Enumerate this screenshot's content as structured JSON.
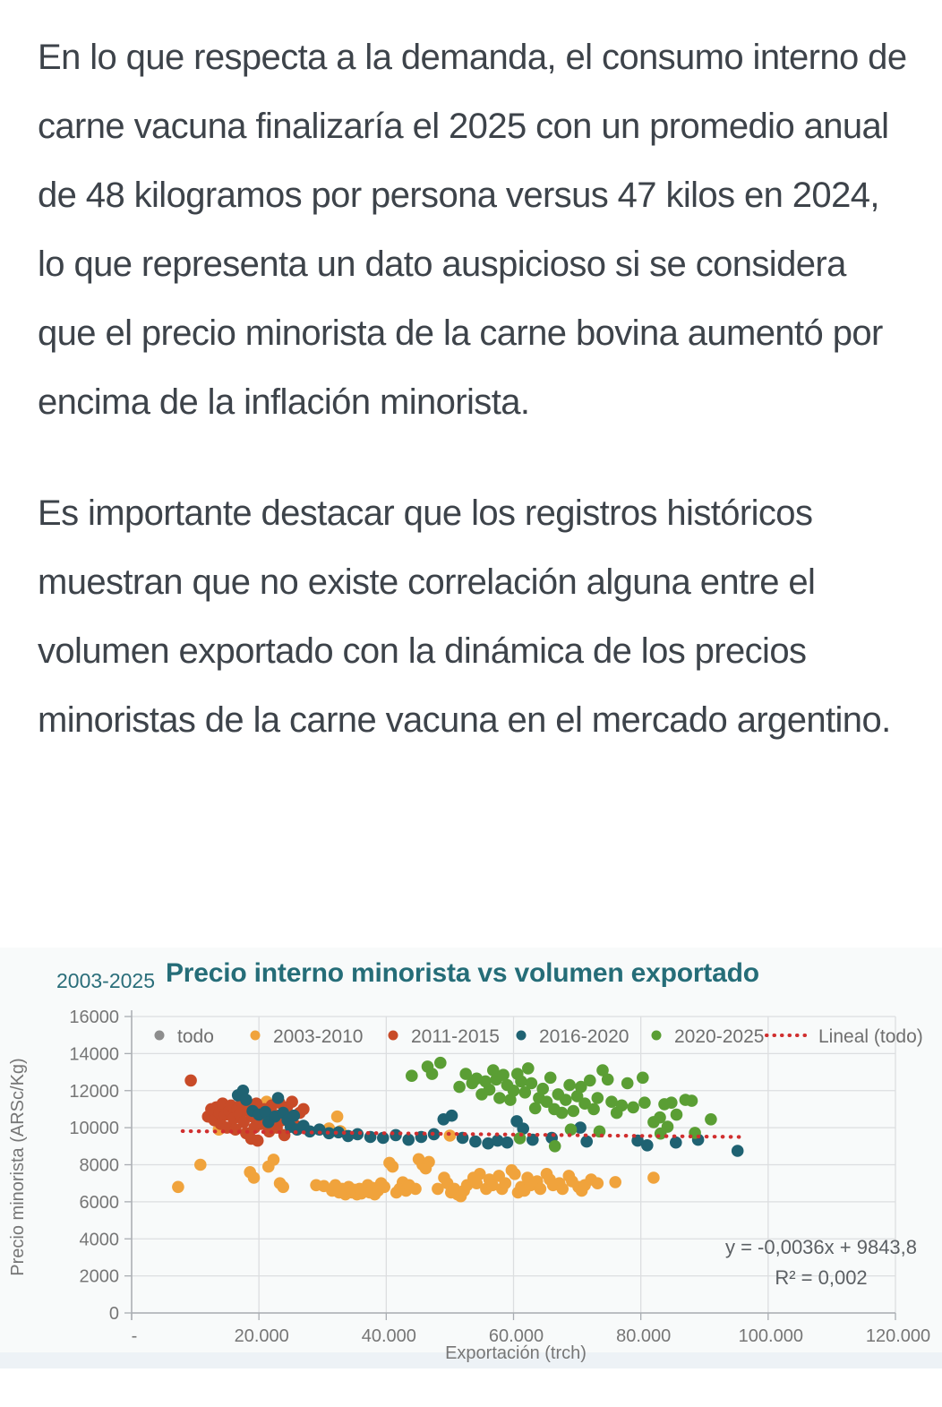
{
  "article": {
    "paragraph1": "En lo que respecta a la demanda, el consumo interno de carne vacuna finalizaría el 2025 con un promedio anual de 48 kilogramos por persona versus 47 kilos en 2024, lo que representa un dato auspicioso si se considera que el precio minorista de la carne bovina aumentó por encima de la inflación minorista.",
    "paragraph2": "Es importante destacar que los registros históricos muestran que no existe correlación alguna entre el volumen exportado con la dinámica de los precios minoristas de la carne vacuna en el mercado argentino."
  },
  "chart": {
    "period_label": "2003-2025",
    "title": "Precio interno minorista vs volumen exportado",
    "title_color": "#256d78",
    "xlabel": "Exportación (trch)",
    "ylabel": "Precio minorista (ARSc/Kg)",
    "x_tick_labels": [
      "-",
      "20.000",
      "40.000",
      "60.000",
      "80.000",
      "100.000",
      "120.000"
    ],
    "y_tick_labels": [
      "0",
      "2000",
      "4000",
      "6000",
      "8000",
      "10000",
      "12000",
      "14000",
      "16000"
    ],
    "equation": "y = -0,0036x + 9843,8",
    "r_squared": "R² = 0,002",
    "legend": [
      {
        "label": "todo",
        "color": "#8d8d8d",
        "type": "dot"
      },
      {
        "label": "2003-2010",
        "color": "#f0a33c",
        "type": "dot"
      },
      {
        "label": "2011-2015",
        "color": "#c84b28",
        "type": "dot"
      },
      {
        "label": "2016-2020",
        "color": "#1f6272",
        "type": "dot"
      },
      {
        "label": "2020-2025",
        "color": "#5a9e34",
        "type": "dot"
      },
      {
        "label": "Lineal (todo)",
        "color": "#d02f2f",
        "type": "dotted-line"
      }
    ]
  },
  "chart_data": {
    "type": "scatter",
    "title": "Precio interno minorista vs volumen exportado",
    "subtitle": "2003-2025",
    "xlabel": "Exportación (trch)",
    "ylabel": "Precio minorista (ARSc/Kg)",
    "xlim": [
      0,
      120000
    ],
    "ylim": [
      0,
      16000
    ],
    "x_tick_step": 20000,
    "y_tick_step": 2000,
    "grid": true,
    "legend_position": "top",
    "series": [
      {
        "name": "todo",
        "color": "#8d8d8d",
        "points": []
      },
      {
        "name": "2003-2010",
        "color": "#f0a33c",
        "points": [
          [
            7300,
            6800
          ],
          [
            10800,
            8000
          ],
          [
            13700,
            9900
          ],
          [
            18600,
            7600
          ],
          [
            19200,
            7300
          ],
          [
            21200,
            11400
          ],
          [
            21500,
            7900
          ],
          [
            22300,
            8270
          ],
          [
            23300,
            7000
          ],
          [
            23800,
            6800
          ],
          [
            29000,
            6900
          ],
          [
            30200,
            6850
          ],
          [
            31000,
            9960
          ],
          [
            32300,
            10600
          ],
          [
            32800,
            9810
          ],
          [
            31500,
            6600
          ],
          [
            32000,
            6900
          ],
          [
            32600,
            6500
          ],
          [
            33100,
            6700
          ],
          [
            33600,
            6400
          ],
          [
            34100,
            6800
          ],
          [
            34600,
            6500
          ],
          [
            35000,
            6650
          ],
          [
            35400,
            6400
          ],
          [
            35800,
            6700
          ],
          [
            36100,
            6450
          ],
          [
            36600,
            6600
          ],
          [
            37100,
            6900
          ],
          [
            37400,
            6500
          ],
          [
            37900,
            6750
          ],
          [
            38200,
            6400
          ],
          [
            38700,
            6600
          ],
          [
            39200,
            7000
          ],
          [
            39700,
            6800
          ],
          [
            40500,
            8100
          ],
          [
            41000,
            7900
          ],
          [
            41600,
            6500
          ],
          [
            42100,
            6700
          ],
          [
            42600,
            7050
          ],
          [
            43100,
            6600
          ],
          [
            43600,
            6900
          ],
          [
            44600,
            6700
          ],
          [
            45100,
            8300
          ],
          [
            45700,
            8000
          ],
          [
            46200,
            7800
          ],
          [
            46700,
            8150
          ],
          [
            48100,
            6700
          ],
          [
            49100,
            7300
          ],
          [
            49600,
            7000
          ],
          [
            50000,
            9570
          ],
          [
            50200,
            6500
          ],
          [
            50700,
            6700
          ],
          [
            51200,
            6400
          ],
          [
            51700,
            6300
          ],
          [
            52200,
            6600
          ],
          [
            52700,
            6900
          ],
          [
            53700,
            7300
          ],
          [
            54200,
            7000
          ],
          [
            54700,
            7500
          ],
          [
            55700,
            6700
          ],
          [
            56200,
            7200
          ],
          [
            56700,
            6900
          ],
          [
            57700,
            7400
          ],
          [
            58200,
            6700
          ],
          [
            58700,
            7000
          ],
          [
            59700,
            7700
          ],
          [
            60200,
            7500
          ],
          [
            60700,
            6500
          ],
          [
            61200,
            6800
          ],
          [
            61700,
            6600
          ],
          [
            62200,
            7300
          ],
          [
            62700,
            6900
          ],
          [
            63700,
            7100
          ],
          [
            64200,
            6700
          ],
          [
            65200,
            7500
          ],
          [
            65700,
            7200
          ],
          [
            66200,
            6900
          ],
          [
            67200,
            7000
          ],
          [
            67700,
            6700
          ],
          [
            68700,
            7400
          ],
          [
            69200,
            7100
          ],
          [
            70200,
            6800
          ],
          [
            70700,
            6600
          ],
          [
            71200,
            6900
          ],
          [
            72200,
            7200
          ],
          [
            73200,
            7000
          ],
          [
            76000,
            7060
          ],
          [
            82000,
            7300
          ]
        ]
      },
      {
        "name": "2011-2015",
        "color": "#c84b28",
        "points": [
          [
            9300,
            12550
          ],
          [
            12000,
            10600
          ],
          [
            12500,
            11000
          ],
          [
            13000,
            10400
          ],
          [
            13300,
            11100
          ],
          [
            13800,
            10800
          ],
          [
            14000,
            10200
          ],
          [
            14300,
            11300
          ],
          [
            14700,
            10700
          ],
          [
            15000,
            10000
          ],
          [
            15300,
            10900
          ],
          [
            15600,
            11200
          ],
          [
            16000,
            10500
          ],
          [
            16300,
            9900
          ],
          [
            16600,
            11000
          ],
          [
            17000,
            10700
          ],
          [
            17300,
            11400
          ],
          [
            17600,
            10300
          ],
          [
            18000,
            9700
          ],
          [
            18300,
            10900
          ],
          [
            18500,
            11150
          ],
          [
            18800,
            9400
          ],
          [
            19000,
            10600
          ],
          [
            19300,
            10000
          ],
          [
            19600,
            11300
          ],
          [
            19800,
            9300
          ],
          [
            20000,
            10800
          ],
          [
            20400,
            10200
          ],
          [
            20800,
            11000
          ],
          [
            21200,
            10500
          ],
          [
            21600,
            9800
          ],
          [
            22000,
            11200
          ],
          [
            22400,
            10700
          ],
          [
            22800,
            10000
          ],
          [
            23200,
            11350
          ],
          [
            23600,
            10400
          ],
          [
            24000,
            9600
          ],
          [
            24400,
            11100
          ],
          [
            24800,
            10600
          ],
          [
            25200,
            11400
          ],
          [
            25800,
            10100
          ],
          [
            26400,
            10800
          ],
          [
            27000,
            11000
          ]
        ]
      },
      {
        "name": "2016-2020",
        "color": "#1f6272",
        "points": [
          [
            16700,
            11750
          ],
          [
            17500,
            12000
          ],
          [
            18000,
            11500
          ],
          [
            19000,
            10900
          ],
          [
            20000,
            10700
          ],
          [
            21000,
            10850
          ],
          [
            21500,
            10300
          ],
          [
            22500,
            10600
          ],
          [
            23000,
            11600
          ],
          [
            23800,
            10800
          ],
          [
            24500,
            10400
          ],
          [
            25000,
            10050
          ],
          [
            25500,
            10650
          ],
          [
            26000,
            9900
          ],
          [
            27000,
            10100
          ],
          [
            28000,
            9800
          ],
          [
            29500,
            9900
          ],
          [
            31000,
            9700
          ],
          [
            32500,
            9750
          ],
          [
            34000,
            9550
          ],
          [
            35500,
            9650
          ],
          [
            37500,
            9500
          ],
          [
            39500,
            9450
          ],
          [
            41500,
            9600
          ],
          [
            43500,
            9350
          ],
          [
            45500,
            9500
          ],
          [
            47500,
            9650
          ],
          [
            49000,
            10450
          ],
          [
            50300,
            10650
          ],
          [
            52000,
            9450
          ],
          [
            54000,
            9250
          ],
          [
            56000,
            9150
          ],
          [
            57500,
            9300
          ],
          [
            59000,
            9200
          ],
          [
            60500,
            10350
          ],
          [
            61500,
            9950
          ],
          [
            63000,
            9350
          ],
          [
            66000,
            9450
          ],
          [
            70500,
            10000
          ],
          [
            71500,
            9250
          ],
          [
            79500,
            9300
          ],
          [
            81000,
            9050
          ],
          [
            85500,
            9200
          ],
          [
            89000,
            9350
          ],
          [
            95200,
            8750
          ]
        ]
      },
      {
        "name": "2020-2025",
        "color": "#5a9e34",
        "points": [
          [
            44000,
            12800
          ],
          [
            46500,
            13300
          ],
          [
            47200,
            12900
          ],
          [
            48500,
            13500
          ],
          [
            51500,
            12200
          ],
          [
            52500,
            12900
          ],
          [
            53500,
            12400
          ],
          [
            54200,
            12650
          ],
          [
            55000,
            11800
          ],
          [
            55600,
            12500
          ],
          [
            56200,
            12050
          ],
          [
            56800,
            13100
          ],
          [
            57300,
            12600
          ],
          [
            57800,
            11600
          ],
          [
            58400,
            12850
          ],
          [
            59000,
            12300
          ],
          [
            59500,
            11500
          ],
          [
            60000,
            12000
          ],
          [
            60600,
            12900
          ],
          [
            61200,
            12500
          ],
          [
            61800,
            11900
          ],
          [
            62300,
            13200
          ],
          [
            62800,
            12400
          ],
          [
            63400,
            11050
          ],
          [
            64000,
            11600
          ],
          [
            64600,
            12100
          ],
          [
            65200,
            11400
          ],
          [
            65800,
            12700
          ],
          [
            66400,
            11000
          ],
          [
            67000,
            11800
          ],
          [
            67600,
            10800
          ],
          [
            68200,
            11500
          ],
          [
            68800,
            12300
          ],
          [
            69400,
            10900
          ],
          [
            70000,
            11700
          ],
          [
            70600,
            12200
          ],
          [
            71200,
            11300
          ],
          [
            72000,
            12550
          ],
          [
            72600,
            11000
          ],
          [
            73200,
            11600
          ],
          [
            74000,
            13100
          ],
          [
            74800,
            12600
          ],
          [
            75400,
            11400
          ],
          [
            76200,
            10800
          ],
          [
            77000,
            11200
          ],
          [
            77900,
            12400
          ],
          [
            78800,
            11100
          ],
          [
            80300,
            12700
          ],
          [
            80600,
            11350
          ],
          [
            82000,
            10300
          ],
          [
            83000,
            10550
          ],
          [
            83700,
            11270
          ],
          [
            84200,
            10050
          ],
          [
            84800,
            11350
          ],
          [
            85600,
            10700
          ],
          [
            87000,
            11500
          ],
          [
            88000,
            11450
          ],
          [
            83100,
            9680
          ],
          [
            88500,
            9720
          ],
          [
            91000,
            10450
          ],
          [
            61000,
            9430
          ],
          [
            66500,
            9000
          ],
          [
            69000,
            9900
          ],
          [
            73500,
            9800
          ]
        ]
      }
    ],
    "trendline": {
      "name": "Lineal (todo)",
      "color": "#d02f2f",
      "slope": -0.0036,
      "intercept": 9843.8,
      "equation": "y = -0,0036x + 9843,8",
      "r2": 0.002,
      "x_range": [
        8000,
        96000
      ]
    }
  }
}
